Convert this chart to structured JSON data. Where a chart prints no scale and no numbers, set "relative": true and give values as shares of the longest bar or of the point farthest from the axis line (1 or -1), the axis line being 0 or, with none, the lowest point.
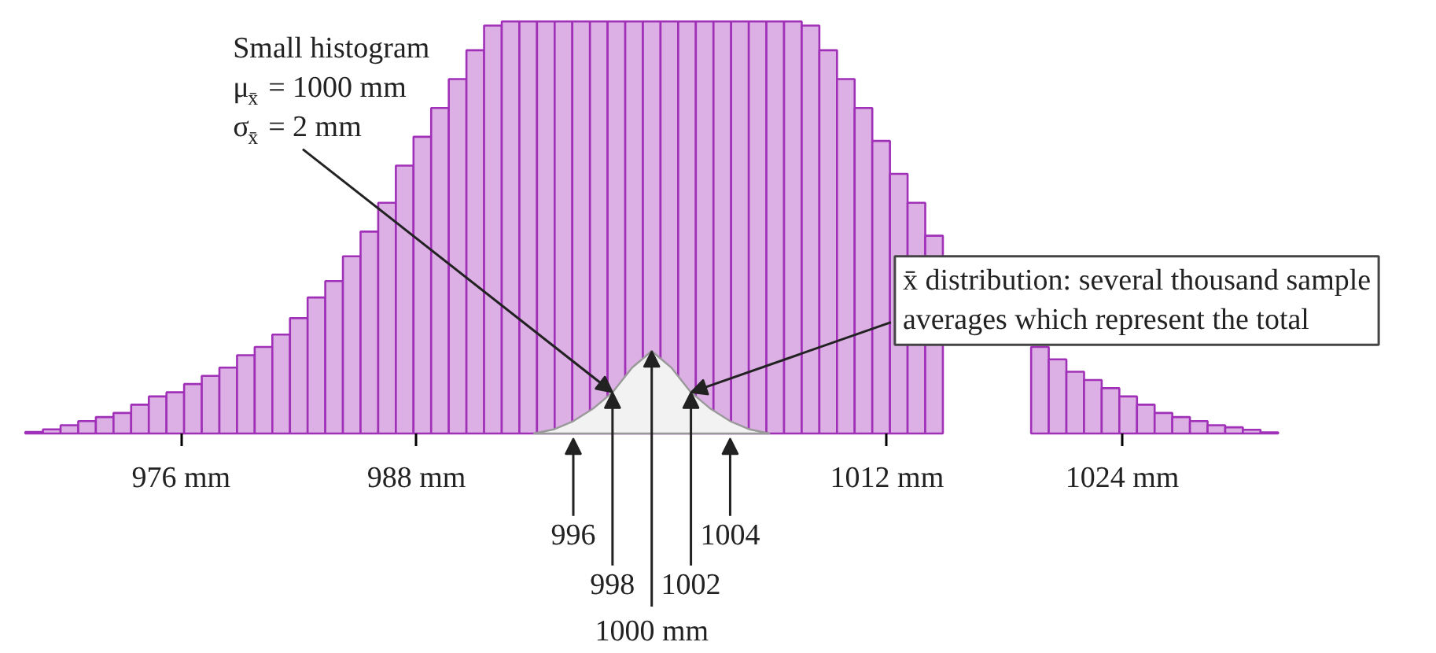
{
  "chart_data": {
    "type": "histogram",
    "relative": true,
    "grid": false,
    "xlim": [
      966.8,
      1039.8
    ],
    "xticks": [
      {
        "value": 976,
        "label": "976 mm"
      },
      {
        "value": 988,
        "label": "988 mm"
      },
      {
        "value": 1012,
        "label": "1012 mm"
      },
      {
        "value": 1024,
        "label": "1024 mm"
      }
    ],
    "bins": [
      968.05,
      968.95,
      969.85,
      970.75,
      971.65,
      972.55,
      973.45,
      974.35,
      975.25,
      976.15,
      977.05,
      977.95,
      978.85,
      979.75,
      980.65,
      981.55,
      982.45,
      983.35,
      984.25,
      985.15,
      986.05,
      986.95,
      987.85,
      988.75,
      989.65,
      990.55,
      991.45,
      992.35,
      993.25,
      994.15,
      995.05,
      995.95,
      996.85,
      997.75,
      998.65,
      999.55,
      1000.45,
      1001.35,
      1002.25,
      1003.15,
      1004.05,
      1004.95,
      1005.85,
      1006.75,
      1007.65,
      1008.55,
      1009.45,
      1010.35,
      1011.25,
      1012.15,
      1013.05,
      1013.95,
      1014.85,
      1015.75,
      1016.65,
      1017.55,
      1018.45,
      1019.35,
      1020.25,
      1021.15,
      1022.05,
      1022.95,
      1023.85,
      1024.75,
      1025.65,
      1026.55,
      1027.45,
      1028.35,
      1029.25,
      1030.15,
      1031.05,
      1031.95
    ],
    "series": [
      {
        "color": "#dcb0e4",
        "values": [
          0.004,
          0.01,
          0.02,
          0.03,
          0.04,
          0.05,
          0.07,
          0.09,
          0.1,
          0.12,
          0.14,
          0.16,
          0.19,
          0.21,
          0.24,
          0.28,
          0.33,
          0.37,
          0.43,
          0.49,
          0.56,
          0.65,
          0.72,
          0.79,
          0.86,
          0.93,
          0.99,
          1,
          1,
          1,
          1,
          1,
          1,
          1,
          1,
          1,
          1,
          1,
          1,
          1,
          1,
          1,
          1,
          1,
          0.99,
          0.93,
          0.86,
          0.79,
          0.71,
          0.63,
          0.56,
          0.48,
          null,
          null,
          null,
          null,
          null,
          0.21,
          0.18,
          0.15,
          0.13,
          0.11,
          0.09,
          0.07,
          0.05,
          0.04,
          0.03,
          0.02,
          0.015,
          0.009,
          0.003
        ]
      },
      {
        "type": "area",
        "color": "#f2f2f2",
        "x": [
          994,
          995,
          996,
          997,
          998,
          999,
          1000,
          1001,
          1002,
          1003,
          1004,
          1005,
          1006
        ],
        "values": [
          0,
          0.01,
          0.03,
          0.06,
          0.1,
          0.16,
          0.2,
          0.16,
          0.1,
          0.06,
          0.03,
          0.01,
          0
        ]
      }
    ],
    "annotations": [
      {
        "text": "Small histogram\nμ$_{x̄}$ = 1000 mm\nσ$_{x̄}$ = 2 mm",
        "x": 998,
        "y": 0.1
      },
      {
        "text": "x̄ distribution: several thousand sample\naverages which represent the total",
        "x": 1002,
        "y": 0.1
      },
      {
        "text": "996",
        "x": 996,
        "y": 0
      },
      {
        "text": "998",
        "x": 998,
        "y": 0.1
      },
      {
        "text": "1000 mm",
        "x": 1000,
        "y": 0.2
      },
      {
        "text": "1002",
        "x": 1002,
        "y": 0.1
      },
      {
        "text": "1004",
        "x": 1004,
        "y": 0
      }
    ]
  }
}
